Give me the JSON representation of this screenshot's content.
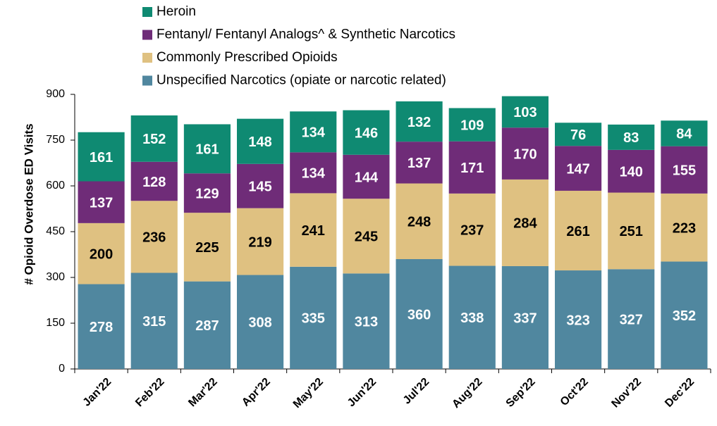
{
  "chart_data": {
    "type": "stacked_bar",
    "y_label": "# Opioid Overdose ED Visits",
    "categories": [
      "Jan'22",
      "Feb'22",
      "Mar'22",
      "Apr'22",
      "May'22",
      "Jun'22",
      "Jul'22",
      "Aug'22",
      "Sep'22",
      "Oct'22",
      "Nov'22",
      "Dec'22"
    ],
    "series": [
      {
        "name": "Unspecified Narcotics (opiate or narcotic related)",
        "color": "#50879f",
        "label_color": "#ffffff",
        "values": [
          278,
          315,
          287,
          308,
          335,
          313,
          360,
          338,
          337,
          323,
          327,
          352
        ]
      },
      {
        "name": "Commonly Prescribed Opioids",
        "color": "#dfc181",
        "label_color": "#000000",
        "values": [
          200,
          236,
          225,
          219,
          241,
          245,
          248,
          237,
          284,
          261,
          251,
          223
        ]
      },
      {
        "name": "Fentanyl/ Fentanyl Analogs^ & Synthetic Narcotics",
        "color": "#6f2c78",
        "label_color": "#ffffff",
        "values": [
          137,
          128,
          129,
          145,
          134,
          144,
          137,
          171,
          170,
          147,
          140,
          155
        ]
      },
      {
        "name": "Heroin",
        "color": "#0f8a72",
        "label_color": "#ffffff",
        "values": [
          161,
          152,
          161,
          148,
          134,
          146,
          132,
          109,
          103,
          76,
          83,
          84
        ]
      }
    ],
    "ylim": [
      0,
      900
    ],
    "yticks": [
      0,
      150,
      300,
      450,
      600,
      750,
      900
    ],
    "grid": false
  }
}
